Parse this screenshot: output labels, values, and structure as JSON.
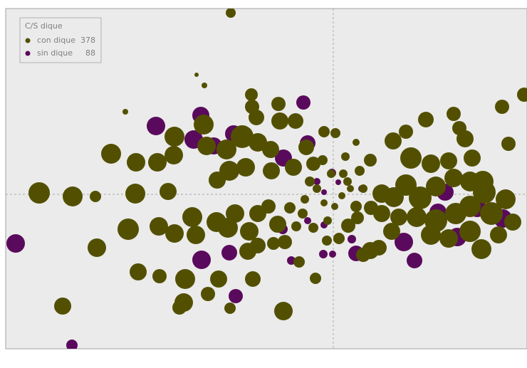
{
  "chart_data": {
    "type": "scatter",
    "legend_title": "C/S dique",
    "xlim": [
      -460,
      272
    ],
    "ylim": [
      -217,
      261
    ],
    "series": [
      {
        "name": "sin dique",
        "count": 88,
        "color": "#5a0a5c",
        "x": [
          -446,
          -367,
          -249,
          -186,
          -196,
          -168,
          -140,
          -42,
          -70,
          -36,
          -185,
          -146,
          -137,
          -59,
          -71,
          -14,
          -1,
          32,
          99,
          114,
          174,
          238,
          202,
          147,
          157,
          -13,
          -36,
          -2,
          7,
          -23,
          -13,
          26,
          40
        ],
        "values": [
          -69,
          -212,
          96,
          111,
          77,
          68,
          85,
          129,
          51,
          72,
          -92,
          -82,
          -143,
          -93,
          -49,
          -84,
          -84,
          -83,
          -67,
          -93,
          -60,
          -34,
          -19,
          -25,
          3,
          -43,
          -37,
          30,
          17,
          18,
          3,
          -63,
          8
        ],
        "sizes": [
          13,
          8,
          13,
          12,
          13,
          12,
          12,
          10,
          12,
          11,
          13,
          11,
          10,
          6,
          7,
          6,
          5,
          11,
          13,
          11,
          13,
          13,
          13,
          12,
          12,
          5,
          5,
          6,
          4,
          5,
          4,
          6,
          5
        ]
      },
      {
        "name": "con dique",
        "count": 378,
        "color": "#525000",
        "x": [
          -144,
          -413,
          -366,
          -334,
          -278,
          -232,
          -312,
          -277,
          -247,
          -224,
          -223,
          -182,
          -178,
          -115,
          -77,
          -114,
          -108,
          -75,
          -53,
          -128,
          -150,
          -106,
          -88,
          -146,
          -163,
          -123,
          -87,
          -56,
          -38,
          -28,
          -13,
          3,
          -332,
          -288,
          -245,
          -223,
          -198,
          -193,
          -164,
          -138,
          -148,
          -118,
          -106,
          -91,
          -78,
          -106,
          -120,
          -84,
          -68,
          -274,
          -244,
          -208,
          -161,
          -176,
          -210,
          -216,
          -145,
          -113,
          -70,
          -380,
          -25,
          -48,
          -61,
          -43,
          -52,
          -28,
          -8,
          21,
          34,
          53,
          68,
          85,
          102,
          122,
          144,
          169,
          192,
          210,
          212,
          192,
          172,
          144,
          117,
          92,
          68,
          82,
          137,
          162,
          192,
          232,
          252,
          208,
          130,
          102,
          84,
          109,
          137,
          162,
          185,
          195,
          169,
          177,
          237,
          246,
          268,
          52,
          42,
          8,
          32,
          52,
          37,
          20,
          17,
          32,
          14,
          -3,
          -15,
          -33,
          -40,
          -23,
          -13,
          2,
          12,
          24,
          42,
          -292,
          -192,
          -181,
          -9,
          64,
          222,
          242
        ],
        "values": [
          255,
          2,
          -3,
          -3,
          1,
          4,
          57,
          45,
          45,
          55,
          81,
          98,
          68,
          140,
          127,
          123,
          108,
          103,
          103,
          81,
          63,
          73,
          63,
          33,
          20,
          38,
          33,
          38,
          66,
          43,
          88,
          86,
          -75,
          -49,
          -45,
          -55,
          -32,
          -57,
          -39,
          -27,
          -47,
          -52,
          -27,
          -17,
          -42,
          -72,
          -80,
          -69,
          -67,
          -109,
          -115,
          -119,
          -119,
          -140,
          -152,
          -159,
          -160,
          -119,
          -164,
          -157,
          -118,
          -95,
          -19,
          -27,
          -45,
          -47,
          -37,
          -44,
          -33,
          -19,
          1,
          -4,
          13,
          -5,
          11,
          23,
          18,
          18,
          3,
          -17,
          -27,
          -37,
          -32,
          -32,
          -27,
          -52,
          -57,
          -62,
          -52,
          -57,
          -39,
          -77,
          105,
          88,
          75,
          51,
          43,
          47,
          78,
          51,
          113,
          93,
          123,
          71,
          140,
          -79,
          -85,
          -62,
          -17,
          48,
          33,
          18,
          53,
          73,
          29,
          29,
          48,
          18,
          -7,
          8,
          -12,
          -17,
          -2,
          8,
          8,
          116,
          168,
          153,
          -65,
          -75,
          -27,
          -7
        ],
        "sizes": [
          7,
          15,
          14,
          8,
          14,
          12,
          14,
          13,
          13,
          13,
          14,
          14,
          13,
          9,
          10,
          10,
          11,
          12,
          11,
          16,
          14,
          13,
          12,
          14,
          12,
          13,
          12,
          12,
          11,
          10,
          8,
          7,
          13,
          15,
          13,
          13,
          14,
          13,
          14,
          13,
          14,
          13,
          12,
          10,
          12,
          11,
          12,
          9,
          10,
          12,
          10,
          14,
          12,
          10,
          13,
          10,
          8,
          11,
          13,
          12,
          8,
          8,
          8,
          7,
          7,
          7,
          6,
          10,
          9,
          10,
          13,
          14,
          15,
          16,
          14,
          13,
          14,
          15,
          16,
          15,
          15,
          16,
          14,
          12,
          12,
          12,
          14,
          13,
          15,
          12,
          12,
          14,
          11,
          10,
          12,
          15,
          13,
          12,
          12,
          12,
          10,
          10,
          10,
          10,
          10,
          12,
          10,
          8,
          8,
          9,
          7,
          6,
          6,
          5,
          6,
          6,
          7,
          7,
          6,
          6,
          5,
          5,
          5,
          5,
          6,
          4,
          3,
          4,
          7,
          11,
          16,
          14
        ]
      }
    ]
  }
}
